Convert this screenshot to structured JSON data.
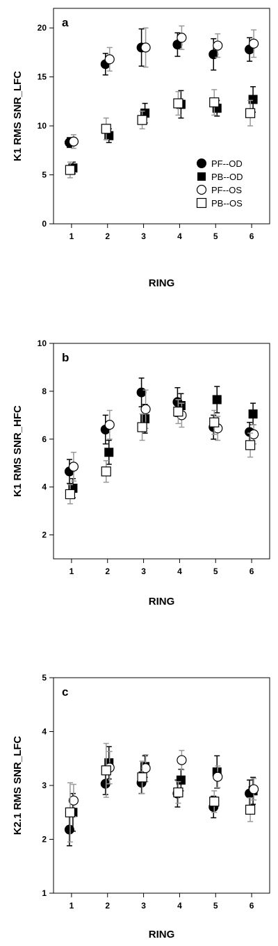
{
  "chart_data": [
    {
      "type": "scatter",
      "panel_label": "a",
      "xlabel": "RING",
      "ylabel": "K1 RMS SNR_LFC",
      "x": [
        1,
        2,
        3,
        4,
        5,
        6
      ],
      "xlim": [
        0.5,
        6.5
      ],
      "ylim": [
        0,
        22
      ],
      "yticks": [
        0,
        5,
        10,
        15,
        20
      ],
      "legend": "bottom-right",
      "series": [
        {
          "name": "PF--OD",
          "marker": "filled-circle",
          "values": [
            8.3,
            16.3,
            18.0,
            18.3,
            17.3,
            17.8
          ],
          "errors": [
            0.5,
            1.1,
            1.9,
            1.2,
            1.6,
            1.2
          ]
        },
        {
          "name": "PB--OD",
          "marker": "filled-square",
          "values": [
            5.7,
            9.0,
            11.3,
            12.2,
            11.8,
            12.7
          ],
          "errors": [
            0.6,
            0.7,
            1.0,
            1.4,
            0.8,
            1.3
          ]
        },
        {
          "name": "PF--OS",
          "marker": "open-circle",
          "values": [
            8.4,
            16.8,
            18.0,
            19.0,
            18.2,
            18.4
          ],
          "errors": [
            0.7,
            1.2,
            2.0,
            1.2,
            1.2,
            1.4
          ]
        },
        {
          "name": "PB--OS",
          "marker": "open-square",
          "values": [
            5.5,
            9.7,
            10.6,
            12.3,
            12.4,
            11.3
          ],
          "errors": [
            0.8,
            1.1,
            0.9,
            1.2,
            1.3,
            1.3
          ]
        }
      ]
    },
    {
      "type": "scatter",
      "panel_label": "b",
      "xlabel": "RING",
      "ylabel": "K1 RMS SNR_HFC",
      "x": [
        1,
        2,
        3,
        4,
        5,
        6
      ],
      "xlim": [
        0.5,
        6.5
      ],
      "ylim": [
        1,
        10
      ],
      "yticks": [
        2,
        4,
        6,
        8,
        10
      ],
      "series": [
        {
          "name": "PF--OD",
          "marker": "filled-circle",
          "values": [
            4.65,
            6.4,
            7.95,
            7.55,
            6.5,
            6.3
          ],
          "errors": [
            0.5,
            0.6,
            0.6,
            0.6,
            0.5,
            0.4
          ]
        },
        {
          "name": "PB--OD",
          "marker": "filled-square",
          "values": [
            3.95,
            5.45,
            6.85,
            7.4,
            7.65,
            7.05
          ],
          "errors": [
            0.4,
            0.5,
            0.6,
            0.5,
            0.55,
            0.45
          ]
        },
        {
          "name": "PF--OS",
          "marker": "open-circle",
          "values": [
            4.85,
            6.6,
            7.25,
            7.0,
            6.45,
            6.2
          ],
          "errors": [
            0.6,
            0.6,
            0.8,
            0.5,
            0.5,
            0.4
          ]
        },
        {
          "name": "PB--OS",
          "marker": "open-square",
          "values": [
            3.7,
            4.65,
            6.5,
            7.15,
            6.7,
            5.75
          ],
          "errors": [
            0.4,
            0.45,
            0.55,
            0.5,
            0.5,
            0.5
          ]
        }
      ]
    },
    {
      "type": "scatter",
      "panel_label": "c",
      "xlabel": "RING",
      "ylabel": "K2.1 RMS SNR_LFC",
      "x": [
        1,
        2,
        3,
        4,
        5,
        6
      ],
      "xlim": [
        0.5,
        6.5
      ],
      "ylim": [
        1,
        5
      ],
      "yticks": [
        1,
        2,
        3,
        4,
        5
      ],
      "series": [
        {
          "name": "PF--OD",
          "marker": "filled-circle",
          "values": [
            2.18,
            3.03,
            3.05,
            2.85,
            2.6,
            2.85
          ],
          "errors": [
            0.3,
            0.2,
            0.2,
            0.25,
            0.2,
            0.25
          ]
        },
        {
          "name": "PB--OD",
          "marker": "filled-square",
          "values": [
            2.5,
            3.42,
            3.35,
            3.1,
            3.25,
            2.9
          ],
          "errors": [
            0.35,
            0.3,
            0.2,
            0.2,
            0.3,
            0.25
          ]
        },
        {
          "name": "PF--OS",
          "marker": "open-circle",
          "values": [
            2.72,
            3.33,
            3.32,
            3.47,
            3.16,
            2.93
          ],
          "errors": [
            0.3,
            0.3,
            0.25,
            0.18,
            0.2,
            0.2
          ]
        },
        {
          "name": "PB--OS",
          "marker": "open-square",
          "values": [
            2.5,
            3.28,
            3.15,
            2.87,
            2.7,
            2.55
          ],
          "errors": [
            0.55,
            0.5,
            0.3,
            0.2,
            0.2,
            0.22
          ]
        }
      ]
    }
  ]
}
